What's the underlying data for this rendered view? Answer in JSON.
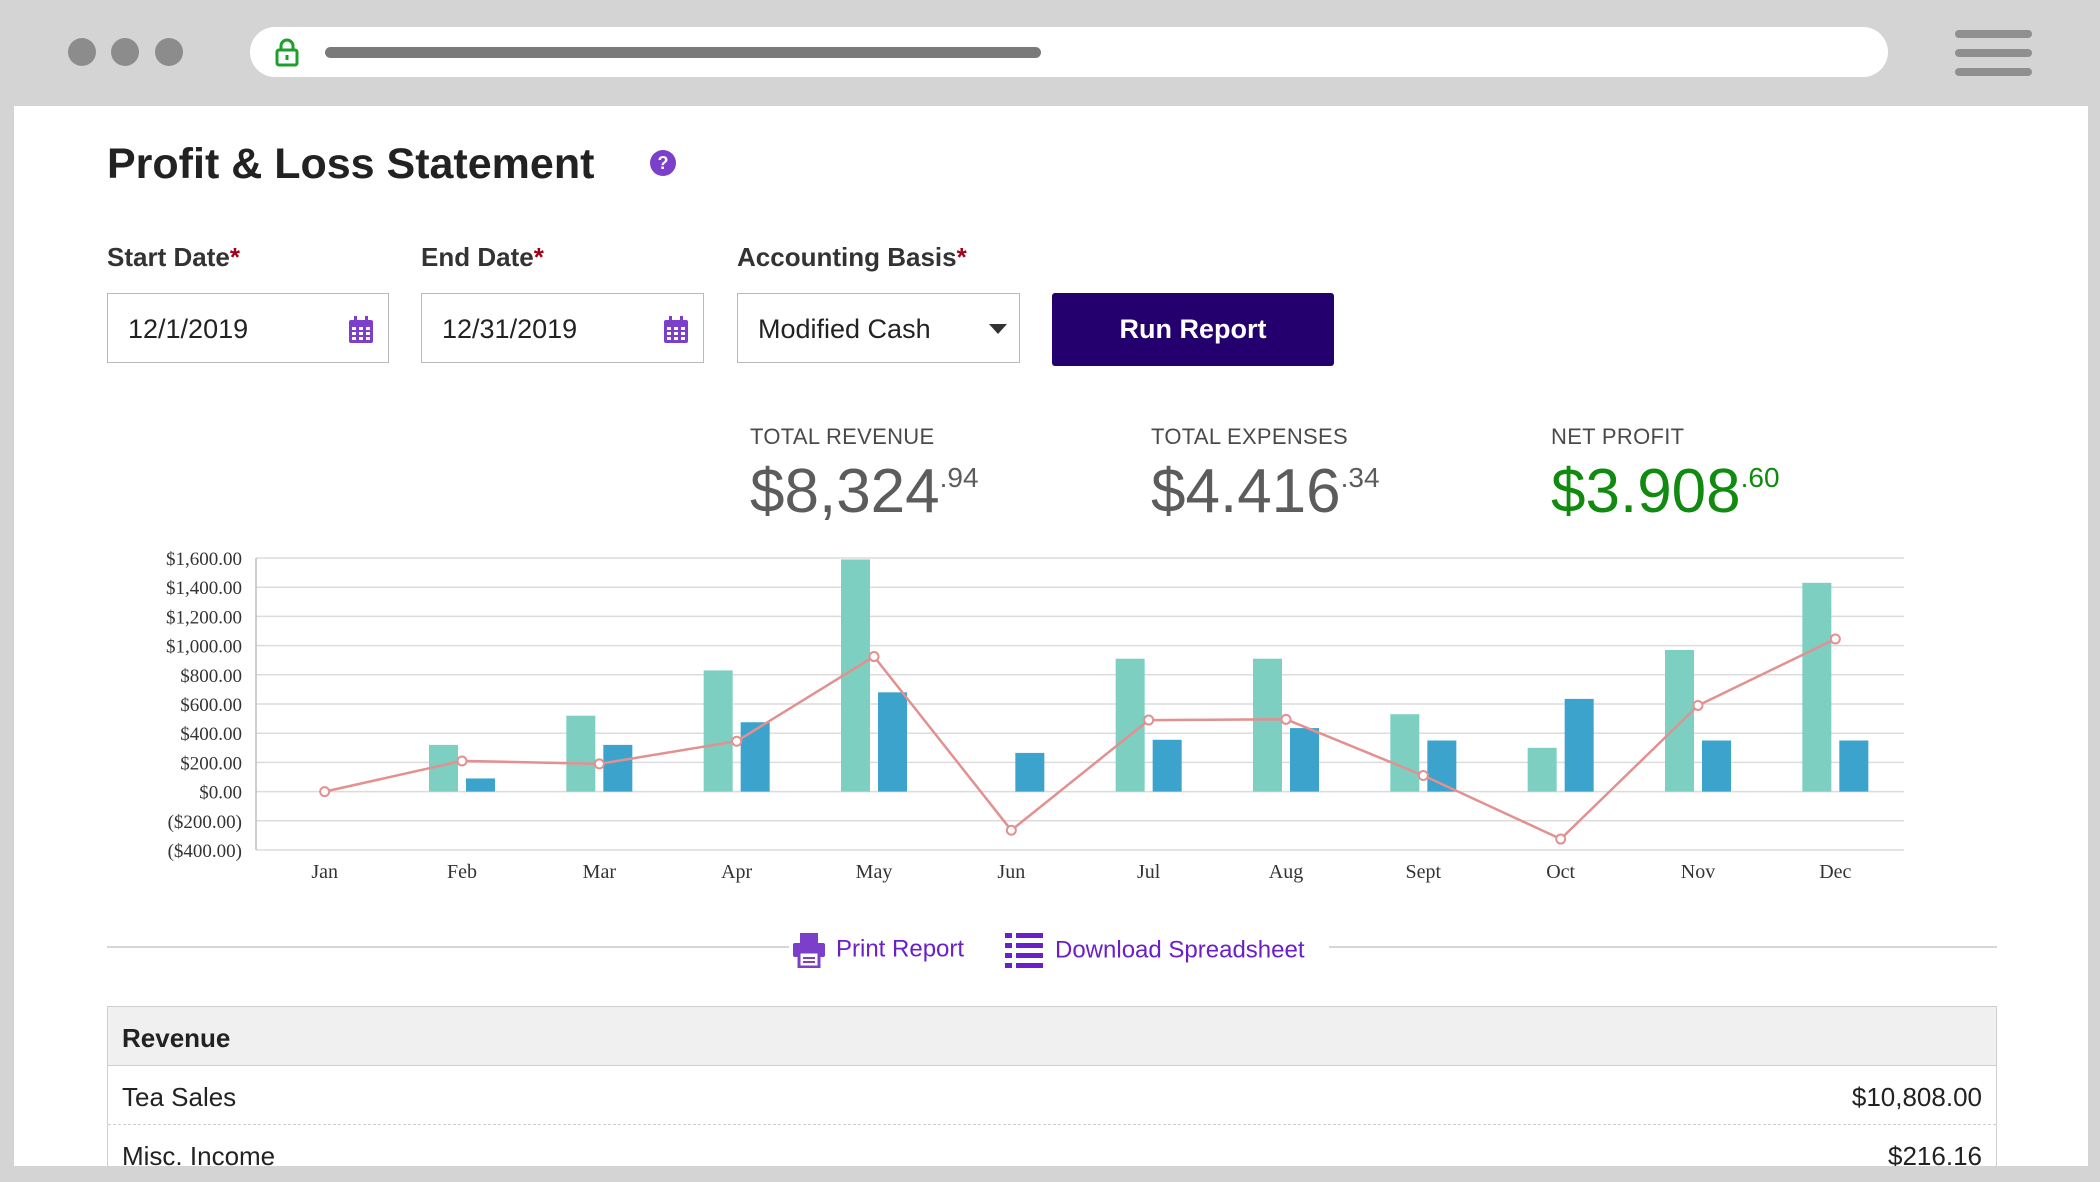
{
  "page": {
    "title": "Profit & Loss Statement",
    "help_icon": "question-circle-icon",
    "required_mark": "*"
  },
  "form": {
    "start_date": {
      "label": "Start Date",
      "value": "12/1/2019",
      "icon": "calendar-icon"
    },
    "end_date": {
      "label": "End Date",
      "value": "12/31/2019",
      "icon": "calendar-icon"
    },
    "accounting_basis": {
      "label": "Accounting Basis",
      "value": "Modified Cash"
    },
    "run_button": "Run Report"
  },
  "summary": {
    "revenue": {
      "label": "TOTAL REVENUE",
      "whole": "$8,324",
      "cents": ".94"
    },
    "expenses": {
      "label": "TOTAL EXPENSES",
      "whole": "$4.416",
      "cents": ".34"
    },
    "net": {
      "label": "NET PROFIT",
      "whole": "$3.908",
      "cents": ".60"
    }
  },
  "colors": {
    "revenue_bar": "#7ccfc1",
    "expense_bar": "#3ba3cc",
    "net_line": "#e39090",
    "accent": "#24006f",
    "link": "#6a1fc9",
    "positive": "#118a10"
  },
  "chart_data": {
    "type": "bar",
    "categories": [
      "Jan",
      "Feb",
      "Mar",
      "Apr",
      "May",
      "Jun",
      "Jul",
      "Aug",
      "Sept",
      "Oct",
      "Nov",
      "Dec"
    ],
    "series": [
      {
        "values": [
          0,
          320,
          520,
          830,
          1590,
          0,
          910,
          910,
          530,
          300,
          970,
          1430
        ]
      },
      {
        "values": [
          0,
          90,
          320,
          475,
          680,
          265,
          355,
          435,
          350,
          635,
          350,
          350
        ]
      },
      {
        "type": "line",
        "values": [
          0,
          210,
          190,
          345,
          925,
          -265,
          490,
          495,
          110,
          -325,
          590,
          1045
        ]
      }
    ],
    "yticks": [
      "$1,600.00",
      "$1,400.00",
      "$1,200.00",
      "$1,000.00",
      "$800.00",
      "$600.00",
      "$400.00",
      "$200.00",
      "$0.00",
      "($200.00)",
      "($400.00)"
    ],
    "ylim": [
      -400,
      1600
    ],
    "grid": true,
    "legend": "none"
  },
  "actions": {
    "print": {
      "label": "Print Report",
      "icon": "printer-icon"
    },
    "download": {
      "label": "Download Spreadsheet",
      "icon": "spreadsheet-list-icon"
    }
  },
  "table": {
    "section": "Revenue",
    "rows": [
      {
        "name": "Tea Sales",
        "amount": "$10,808.00"
      },
      {
        "name": "Misc. Income",
        "amount": "$216.16"
      }
    ]
  }
}
